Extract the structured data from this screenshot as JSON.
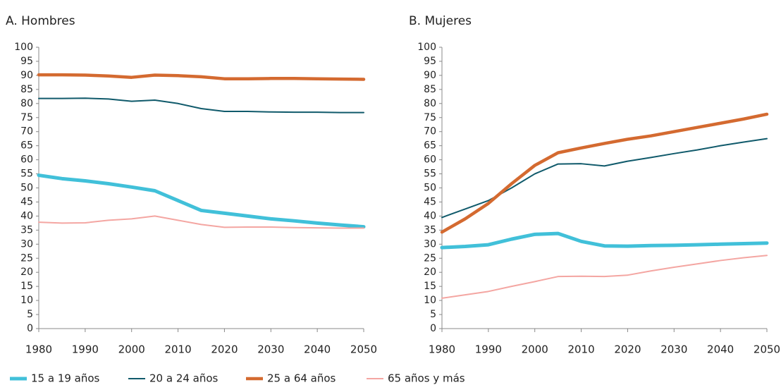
{
  "chart_data": [
    {
      "type": "line",
      "title": "A. Hombres",
      "x": [
        1980,
        1985,
        1990,
        1995,
        2000,
        2005,
        2010,
        2015,
        2020,
        2025,
        2030,
        2035,
        2040,
        2045,
        2050
      ],
      "xlim": [
        1980,
        2050
      ],
      "xticks": [
        1980,
        1990,
        2000,
        2010,
        2020,
        2030,
        2040,
        2050
      ],
      "ylim": [
        0,
        100
      ],
      "yticks": [
        0,
        5,
        10,
        15,
        20,
        25,
        30,
        35,
        40,
        45,
        50,
        55,
        60,
        65,
        70,
        75,
        80,
        85,
        90,
        95,
        100
      ],
      "series": [
        {
          "name": "15 a 19 años",
          "color": "#41c0d9",
          "values": [
            54.5,
            53.3,
            52.5,
            51.5,
            50.3,
            49,
            45.5,
            42,
            41,
            40,
            39,
            38.3,
            37.5,
            36.8,
            36.2
          ]
        },
        {
          "name": "20 a 24 años",
          "color": "#105a6b",
          "values": [
            81.8,
            81.8,
            81.9,
            81.6,
            80.8,
            81.2,
            80,
            78.2,
            77.2,
            77.2,
            77,
            76.9,
            76.9,
            76.8,
            76.8
          ]
        },
        {
          "name": "25 a 64 años",
          "color": "#d46a30",
          "values": [
            90.2,
            90.2,
            90.1,
            89.8,
            89.3,
            90.1,
            89.9,
            89.5,
            88.8,
            88.8,
            88.9,
            88.9,
            88.8,
            88.7,
            88.6
          ]
        },
        {
          "name": "65 años y más",
          "color": "#f4a6a2",
          "values": [
            37.8,
            37.5,
            37.6,
            38.5,
            39,
            40,
            38.5,
            37,
            36,
            36.1,
            36.1,
            35.9,
            35.8,
            35.7,
            35.7
          ]
        }
      ]
    },
    {
      "type": "line",
      "title": "B. Mujeres",
      "x": [
        1980,
        1985,
        1990,
        1995,
        2000,
        2005,
        2010,
        2015,
        2020,
        2025,
        2030,
        2035,
        2040,
        2045,
        2050
      ],
      "xlim": [
        1980,
        2050
      ],
      "xticks": [
        1980,
        1990,
        2000,
        2010,
        2020,
        2030,
        2040,
        2050
      ],
      "ylim": [
        0,
        100
      ],
      "yticks": [
        0,
        5,
        10,
        15,
        20,
        25,
        30,
        35,
        40,
        45,
        50,
        55,
        60,
        65,
        70,
        75,
        80,
        85,
        90,
        95,
        100
      ],
      "series": [
        {
          "color": "#41c0d9",
          "values": [
            28.8,
            29.2,
            29.8,
            31.8,
            33.5,
            33.8,
            31,
            29.4,
            29.3,
            29.5,
            29.6,
            29.8,
            30,
            30.2,
            30.4
          ]
        },
        {
          "color": "#105a6b",
          "values": [
            39.5,
            42.5,
            45.5,
            50,
            55,
            58.5,
            58.6,
            57.8,
            59.5,
            60.8,
            62.2,
            63.5,
            65,
            66.3,
            67.5
          ]
        },
        {
          "color": "#d46a30",
          "values": [
            34.3,
            39,
            44.5,
            51.5,
            58,
            62.5,
            64.2,
            65.8,
            67.3,
            68.5,
            70,
            71.5,
            73,
            74.5,
            76.2
          ]
        },
        {
          "color": "#f4a6a2",
          "values": [
            10.8,
            12,
            13.2,
            15,
            16.7,
            18.5,
            18.6,
            18.5,
            19,
            20.5,
            21.8,
            23,
            24.2,
            25.2,
            26
          ]
        }
      ]
    }
  ]
}
